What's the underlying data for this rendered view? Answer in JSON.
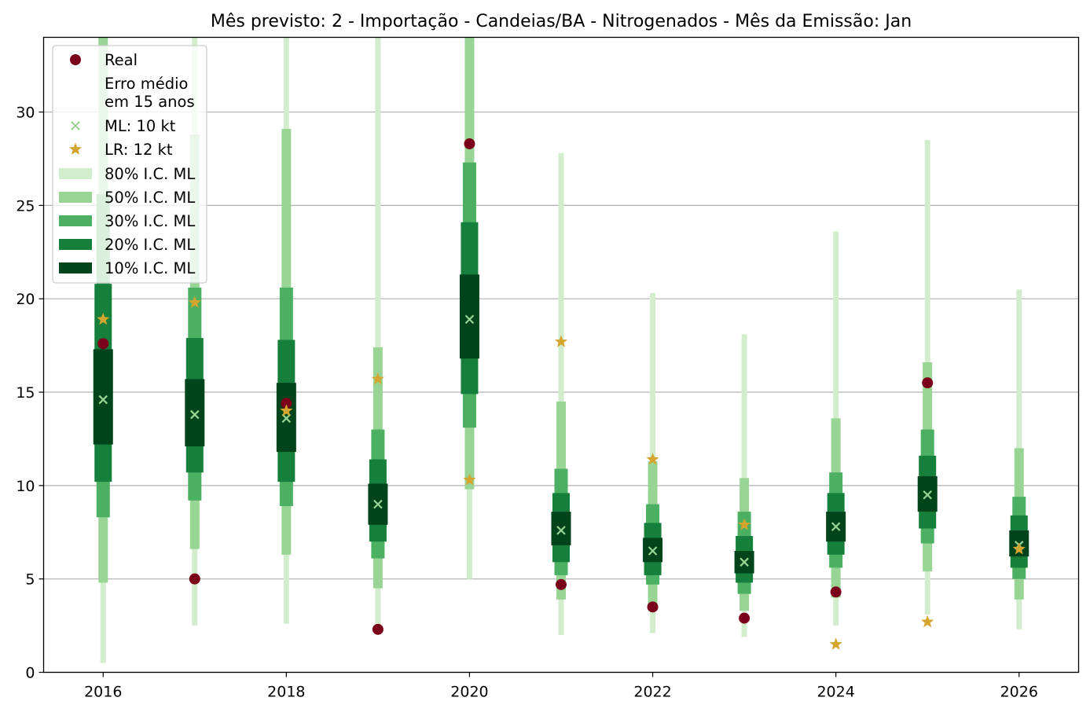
{
  "chart_data": {
    "type": "scatter",
    "title": "Mês previsto: 2 - Importação - Candeias/BA - Nitrogenados - Mês da Emissão: Jan",
    "xlabel": "",
    "ylabel": "",
    "xlim": [
      2015.35,
      2026.65
    ],
    "ylim": [
      0,
      34
    ],
    "x_ticks": [
      2016,
      2018,
      2020,
      2022,
      2024,
      2026
    ],
    "y_ticks": [
      0,
      5,
      10,
      15,
      20,
      25,
      30
    ],
    "grid": "horizontal",
    "legend_position": "top-left",
    "x": [
      2016,
      2017,
      2018,
      2019,
      2020,
      2021,
      2022,
      2023,
      2024,
      2025,
      2026
    ],
    "series": [
      {
        "name": "Real",
        "marker": "circle",
        "color": "#7b0019",
        "values": [
          17.6,
          5.0,
          14.4,
          2.3,
          28.3,
          4.7,
          3.5,
          2.9,
          4.3,
          15.5,
          null
        ]
      },
      {
        "name": "ML: 10 kt",
        "marker": "x",
        "color": "#98d594",
        "values": [
          14.6,
          13.8,
          13.6,
          9.0,
          18.9,
          7.6,
          6.5,
          5.9,
          7.8,
          9.5,
          6.8
        ]
      },
      {
        "name": "LR: 12 kt",
        "marker": "star",
        "color": "#d4a52f",
        "values": [
          18.9,
          19.8,
          14.0,
          15.7,
          10.3,
          17.7,
          11.4,
          7.9,
          1.5,
          2.7,
          6.6
        ]
      }
    ],
    "intervals": [
      {
        "name": "80% I.C. ML",
        "color": "#d2edcc",
        "low": [
          0.5,
          2.5,
          2.6,
          2.1,
          5.0,
          2.0,
          2.1,
          1.9,
          2.5,
          3.1,
          2.3
        ],
        "high": [
          34.0,
          34.0,
          34.0,
          34.0,
          34.0,
          27.8,
          20.3,
          18.1,
          23.6,
          28.5,
          20.5
        ]
      },
      {
        "name": "50% I.C. ML",
        "color": "#98d594",
        "low": [
          4.8,
          6.6,
          6.3,
          4.5,
          9.8,
          3.9,
          3.4,
          3.3,
          4.0,
          5.4,
          3.9
        ],
        "high": [
          34.0,
          28.8,
          29.1,
          17.4,
          34.0,
          14.5,
          11.3,
          10.4,
          13.6,
          16.6,
          12.0
        ]
      },
      {
        "name": "30% I.C. ML",
        "color": "#4bb062",
        "low": [
          8.3,
          9.2,
          8.9,
          6.1,
          13.1,
          5.2,
          4.7,
          4.2,
          5.6,
          6.9,
          5.0
        ],
        "high": [
          25.6,
          20.6,
          20.6,
          13.0,
          27.3,
          10.9,
          9.0,
          8.6,
          10.7,
          13.0,
          9.4
        ]
      },
      {
        "name": "20% I.C. ML",
        "color": "#157f3b",
        "low": [
          10.2,
          10.7,
          10.2,
          7.0,
          14.9,
          5.9,
          5.2,
          4.8,
          6.3,
          7.7,
          5.6
        ],
        "high": [
          20.8,
          17.9,
          17.8,
          11.4,
          24.1,
          9.6,
          8.0,
          7.3,
          9.6,
          11.6,
          8.4
        ]
      },
      {
        "name": "10% I.C. ML",
        "color": "#00441b",
        "low": [
          12.2,
          12.1,
          11.8,
          7.9,
          16.8,
          6.8,
          5.9,
          5.3,
          7.0,
          8.6,
          6.2
        ],
        "high": [
          17.3,
          15.7,
          15.5,
          10.1,
          21.3,
          8.6,
          7.2,
          6.5,
          8.6,
          10.5,
          7.6
        ]
      }
    ],
    "legend": {
      "real": "Real",
      "error_line1": "Erro médio",
      "error_line2": "em 15 anos",
      "ml": "ML: 10 kt",
      "lr": "LR: 12 kt",
      "ci80": "80% I.C. ML",
      "ci50": "50% I.C. ML",
      "ci30": "30% I.C. ML",
      "ci20": "20% I.C. ML",
      "ci10": "10% I.C. ML"
    }
  }
}
